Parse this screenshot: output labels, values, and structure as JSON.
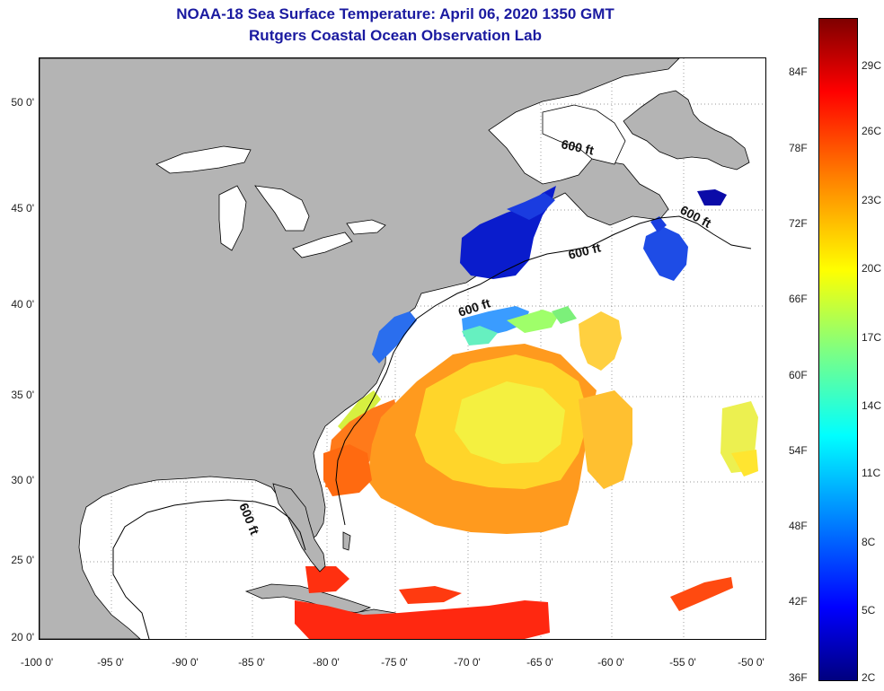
{
  "header": {
    "title": "NOAA-18 Sea Surface Temperature:  April 06, 2020 1350 GMT",
    "subtitle": "Rutgers Coastal Ocean Observation Lab"
  },
  "axes": {
    "lat_labels": [
      "50 0'",
      "45 0'",
      "40 0'",
      "35 0'",
      "30 0'",
      "25 0'",
      "20 0'"
    ],
    "lon_labels": [
      "-100 0'",
      "-95 0'",
      "-90 0'",
      "-85 0'",
      "-80 0'",
      "-75 0'",
      "-70 0'",
      "-65 0'",
      "-60 0'",
      "-55 0'",
      "-50 0'"
    ]
  },
  "contour_labels": [
    "600 ft",
    "600 ft",
    "600 ft",
    "600 ft",
    "600 ft"
  ],
  "colorbar": {
    "fahrenheit": [
      "84F",
      "78F",
      "72F",
      "66F",
      "60F",
      "54F",
      "48F",
      "42F",
      "36F"
    ],
    "celsius": [
      "29C",
      "26C",
      "23C",
      "20C",
      "17C",
      "14C",
      "11C",
      "8C",
      "5C",
      "2C"
    ],
    "colors": [
      "#00007f",
      "#0000ff",
      "#0080ff",
      "#00ffff",
      "#80ff80",
      "#ffff00",
      "#ff8000",
      "#ff0000",
      "#7f0000"
    ]
  },
  "colors": {
    "land": "#b4b4b4",
    "title": "#1a1aa0",
    "no_data": "#ffffff"
  }
}
